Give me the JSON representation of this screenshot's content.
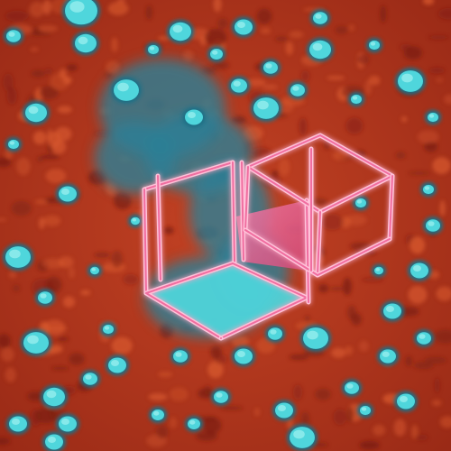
{
  "artwork": {
    "subject": "abstract-isometric-cube-frames",
    "palette": {
      "background": "#b3361d",
      "background_dark": "#7a1e12",
      "background_light": "#d95a2f",
      "cyan": "#4fd6dc",
      "cyan_dark": "#1f6f86",
      "cyan_light": "#9ff1f0",
      "pink": "#f06ea0",
      "pink_light": "#ffc2d9",
      "teal_cloud": "#2a7f96"
    }
  }
}
